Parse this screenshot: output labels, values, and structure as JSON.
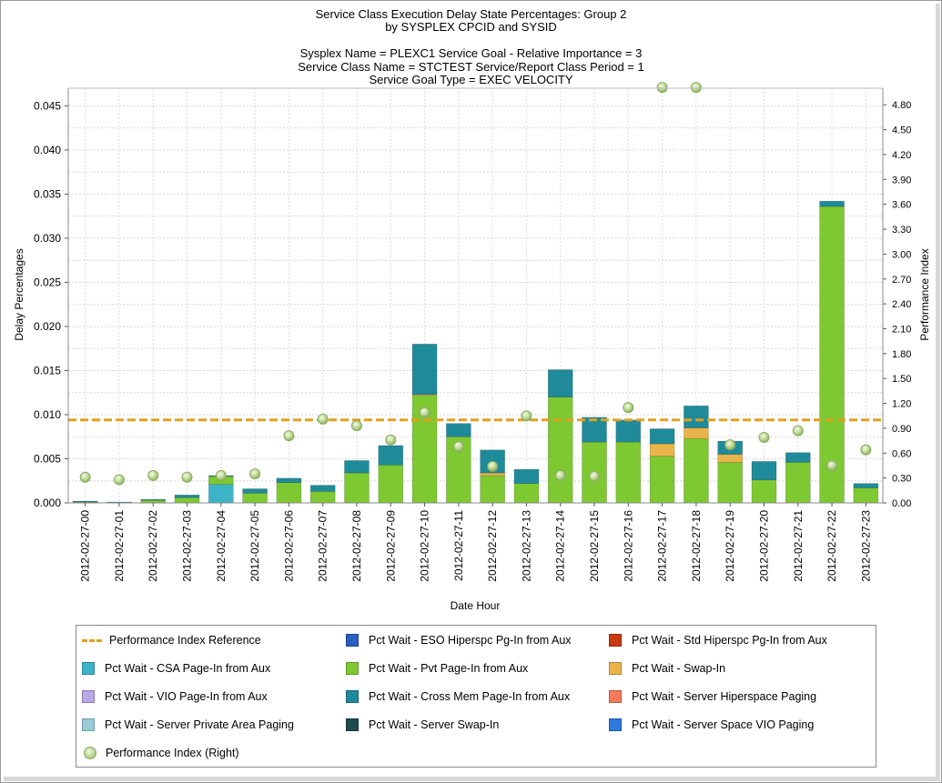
{
  "title_lines": [
    "Service Class Execution Delay State Percentages: Group 2",
    "by SYSPLEX CPCID and SYSID",
    "",
    "Sysplex Name = PLEXC1  Service Goal - Relative Importance = 3",
    "Service Class Name = STCTEST  Service/Report Class Period = 1",
    "Service Goal Type = EXEC VELOCITY"
  ],
  "chart_data": {
    "type": "bar",
    "stacked": true,
    "xlabel": "Date Hour",
    "ylabel": "Delay Percentages",
    "y2label": "Performance Index",
    "ylim": [
      0,
      0.047
    ],
    "y2lim": [
      0,
      5.0
    ],
    "yticks": [
      "0.000",
      "0.005",
      "0.010",
      "0.015",
      "0.020",
      "0.025",
      "0.030",
      "0.035",
      "0.040",
      "0.045"
    ],
    "y2ticks": [
      "0.00",
      "0.30",
      "0.60",
      "0.90",
      "1.20",
      "1.50",
      "1.80",
      "2.10",
      "2.40",
      "2.70",
      "3.00",
      "3.30",
      "3.60",
      "3.90",
      "4.20",
      "4.50",
      "4.80"
    ],
    "categories": [
      "2012-02-27-00",
      "2012-02-27-01",
      "2012-02-27-02",
      "2012-02-27-03",
      "2012-02-27-04",
      "2012-02-27-05",
      "2012-02-27-06",
      "2012-02-27-07",
      "2012-02-27-08",
      "2012-02-27-09",
      "2012-02-27-10",
      "2012-02-27-11",
      "2012-02-27-12",
      "2012-02-27-13",
      "2012-02-27-14",
      "2012-02-27-15",
      "2012-02-27-16",
      "2012-02-27-17",
      "2012-02-27-18",
      "2012-02-27-19",
      "2012-02-27-20",
      "2012-02-27-21",
      "2012-02-27-22",
      "2012-02-27-23"
    ],
    "reference_line": {
      "name": "Performance Index Reference",
      "y2": 1.0,
      "color": "#e0a020"
    },
    "series": [
      {
        "name": "Pct Wait - ESO Hiperspc Pg-In from Aux",
        "color": "#2a5ebf",
        "values": [
          0,
          0,
          0,
          0,
          0,
          0,
          0,
          0,
          0,
          0,
          0,
          0,
          0,
          0,
          0,
          0,
          0,
          0,
          0,
          0,
          0,
          0,
          0,
          0
        ]
      },
      {
        "name": "Pct Wait - Std Hiperspc Pg-In from Aux",
        "color": "#c83a10",
        "values": [
          0,
          0,
          0,
          0,
          0,
          0,
          0,
          0,
          0,
          0,
          0,
          0,
          0,
          0,
          0,
          0,
          0,
          0,
          0,
          0,
          0,
          0,
          0,
          0
        ]
      },
      {
        "name": "Pct Wait - CSA Page-In from Aux",
        "color": "#3db3c8",
        "values": [
          0,
          0,
          0,
          0,
          0.0021,
          0,
          0,
          0,
          0,
          0,
          0,
          0,
          0,
          0,
          0,
          0,
          0,
          0,
          0,
          0,
          0,
          0,
          0,
          0
        ]
      },
      {
        "name": "Pct Wait - Pvt Page-In from Aux",
        "color": "#7ec832",
        "values": [
          0.0001,
          0,
          0.0003,
          0.0006,
          0.0009,
          0.0011,
          0.0023,
          0.0013,
          0.0034,
          0.0043,
          0.0122,
          0.0075,
          0.0031,
          0.0022,
          0.012,
          0.0069,
          0.0069,
          0.0053,
          0.0073,
          0.0046,
          0.0026,
          0.0046,
          0.0336,
          0.0017
        ]
      },
      {
        "name": "Pct Wait - Swap-In",
        "color": "#eab44a",
        "values": [
          0,
          0,
          0,
          0,
          0,
          0,
          0,
          0,
          0,
          0,
          0.0001,
          0,
          0.0003,
          0,
          0,
          0,
          0,
          0.0014,
          0.0012,
          0.0009,
          0,
          0,
          0,
          0
        ]
      },
      {
        "name": "Pct Wait - VIO Page-In from Aux",
        "color": "#b8a8e6",
        "values": [
          0,
          0,
          0,
          0,
          0,
          0,
          0,
          0,
          0,
          0,
          0,
          0,
          0,
          0,
          0,
          0,
          0,
          0,
          0,
          0,
          0,
          0,
          0,
          0
        ]
      },
      {
        "name": "Pct Wait - Cross Mem Page-In from Aux",
        "color": "#1f8a9a",
        "values": [
          0.0001,
          0.0001,
          0.0001,
          0.0003,
          0.0001,
          0.0005,
          0.0005,
          0.0007,
          0.0014,
          0.0022,
          0.0057,
          0.0015,
          0.0026,
          0.0016,
          0.0031,
          0.0028,
          0.0025,
          0.0017,
          0.0025,
          0.0015,
          0.0021,
          0.0011,
          0.0006,
          0.0005
        ]
      },
      {
        "name": "Pct Wait - Server Hiperspace Paging",
        "color": "#f47a5a",
        "values": [
          0,
          0,
          0,
          0,
          0,
          0,
          0,
          0,
          0,
          0,
          0,
          0,
          0,
          0,
          0,
          0,
          0,
          0,
          0,
          0,
          0,
          0,
          0,
          0
        ]
      },
      {
        "name": "Pct Wait - Server Private Area Paging",
        "color": "#98cdd6",
        "values": [
          0,
          0,
          0,
          0,
          0,
          0,
          0,
          0,
          0,
          0,
          0,
          0,
          0,
          0,
          0,
          0,
          0,
          0,
          0,
          0,
          0,
          0,
          0,
          0
        ]
      },
      {
        "name": "Pct Wait - Server Swap-In",
        "color": "#1d4a4a",
        "values": [
          0,
          0,
          0,
          0,
          0,
          0,
          0,
          0,
          0,
          0,
          0,
          0,
          0,
          0,
          0,
          0,
          0,
          0,
          0,
          0,
          0,
          0,
          0,
          0
        ]
      },
      {
        "name": "Pct Wait - Server Space VIO Paging",
        "color": "#2e78e0",
        "values": [
          0,
          0,
          0,
          0,
          0,
          0,
          0,
          0,
          0,
          0,
          0,
          0,
          0,
          0,
          0,
          0,
          0,
          0,
          0,
          0,
          0,
          0,
          0,
          0
        ]
      }
    ],
    "performance_index": {
      "name": "Performance Index (Right)",
      "axis": "right",
      "values": [
        0.31,
        0.28,
        0.33,
        0.31,
        0.33,
        0.35,
        0.81,
        1.01,
        0.93,
        0.76,
        1.09,
        0.68,
        0.44,
        1.05,
        0.33,
        0.32,
        1.15,
        5.01,
        5.01,
        0.7,
        0.79,
        0.87,
        0.45,
        0.64
      ]
    },
    "grid": true,
    "legend_position": "bottom"
  },
  "legend": {
    "items": [
      {
        "label": "Performance Index Reference",
        "kind": "dash",
        "color": "#e0a020"
      },
      {
        "label": "Pct Wait - ESO Hiperspc Pg-In from Aux",
        "kind": "box",
        "color": "#2a5ebf"
      },
      {
        "label": "Pct Wait - Std Hiperspc Pg-In from Aux",
        "kind": "box",
        "color": "#c83a10"
      },
      {
        "label": "Pct Wait - CSA Page-In from Aux",
        "kind": "box",
        "color": "#3db3c8"
      },
      {
        "label": "Pct Wait - Pvt Page-In from Aux",
        "kind": "box",
        "color": "#7ec832"
      },
      {
        "label": "Pct Wait - Swap-In",
        "kind": "box",
        "color": "#eab44a"
      },
      {
        "label": "Pct Wait - VIO Page-In from Aux",
        "kind": "box",
        "color": "#b8a8e6"
      },
      {
        "label": "Pct Wait - Cross Mem Page-In from Aux",
        "kind": "box",
        "color": "#1f8a9a"
      },
      {
        "label": "Pct Wait - Server Hiperspace Paging",
        "kind": "box",
        "color": "#f47a5a"
      },
      {
        "label": "Pct Wait - Server Private Area Paging",
        "kind": "box",
        "color": "#98cdd6"
      },
      {
        "label": "Pct Wait - Server Swap-In",
        "kind": "box",
        "color": "#1d4a4a"
      },
      {
        "label": "Pct Wait - Server Space VIO Paging",
        "kind": "box",
        "color": "#2e78e0"
      },
      {
        "label": "Performance Index (Right)",
        "kind": "dot",
        "color": "#b7d68a"
      }
    ]
  }
}
